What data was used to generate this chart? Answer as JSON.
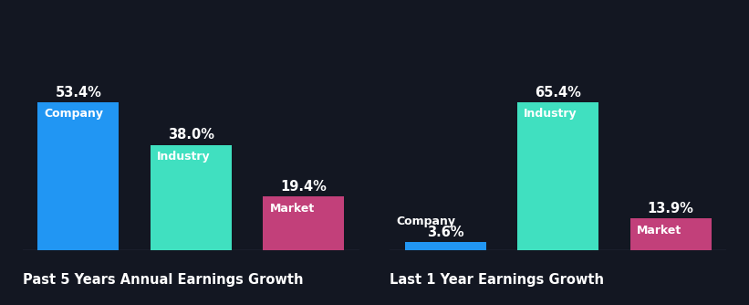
{
  "background_color": "#131722",
  "chart1": {
    "title": "Past 5 Years Annual Earnings Growth",
    "categories": [
      "Company",
      "Industry",
      "Market"
    ],
    "values": [
      53.4,
      38.0,
      19.4
    ],
    "colors": [
      "#2196f3",
      "#40e0c0",
      "#c2407a"
    ],
    "labels": [
      "53.4%",
      "38.0%",
      "19.4%"
    ]
  },
  "chart2": {
    "title": "Last 1 Year Earnings Growth",
    "categories": [
      "Company",
      "Industry",
      "Market"
    ],
    "values": [
      3.6,
      65.4,
      13.9
    ],
    "colors": [
      "#2196f3",
      "#40e0c0",
      "#c2407a"
    ],
    "labels": [
      "3.6%",
      "65.4%",
      "13.9%"
    ]
  },
  "title_color": "#ffffff",
  "bar_label_color": "#ffffff",
  "bar_name_color": "#ffffff",
  "title_fontsize": 10.5,
  "value_fontsize": 10.5,
  "name_fontsize": 9
}
